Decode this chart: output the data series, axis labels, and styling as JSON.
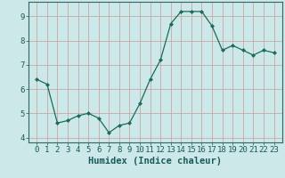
{
  "title": "",
  "xlabel": "Humidex (Indice chaleur)",
  "ylabel": "",
  "x": [
    0,
    1,
    2,
    3,
    4,
    5,
    6,
    7,
    8,
    9,
    10,
    11,
    12,
    13,
    14,
    15,
    16,
    17,
    18,
    19,
    20,
    21,
    22,
    23
  ],
  "y": [
    6.4,
    6.2,
    4.6,
    4.7,
    4.9,
    5.0,
    4.8,
    4.2,
    4.5,
    4.6,
    5.4,
    6.4,
    7.2,
    8.7,
    9.2,
    9.2,
    9.2,
    8.6,
    7.6,
    7.8,
    7.6,
    7.4,
    7.6,
    7.5
  ],
  "ylim": [
    3.8,
    9.6
  ],
  "yticks": [
    4,
    5,
    6,
    7,
    8,
    9
  ],
  "xticks": [
    0,
    1,
    2,
    3,
    4,
    5,
    6,
    7,
    8,
    9,
    10,
    11,
    12,
    13,
    14,
    15,
    16,
    17,
    18,
    19,
    20,
    21,
    22,
    23
  ],
  "line_color": "#1a6b5a",
  "marker": "D",
  "marker_size": 2.0,
  "bg_color": "#cce8e8",
  "grid_color": "#c8a8a8",
  "axis_bg": "#cce8e8",
  "tick_label_fontsize": 6.5,
  "xlabel_fontsize": 7.5,
  "font_family": "monospace"
}
